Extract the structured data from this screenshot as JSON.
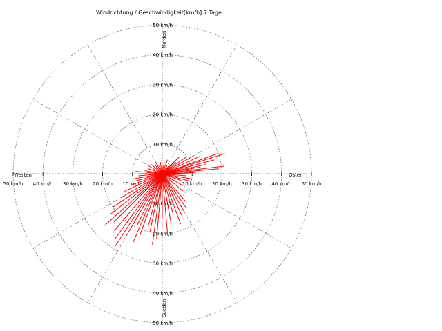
{
  "chart_data": {
    "type": "polar",
    "title": "Windrichtung / Geschwindigkeit[km/h] 7 Tage",
    "directions": {
      "north": "Norden",
      "south": "Sueden",
      "west": "Westen",
      "east": "Osten"
    },
    "r_max": 50,
    "ring_labels": [
      "10 km/h",
      "20 km/h",
      "30 km/h",
      "40 km/h",
      "50 km/h"
    ],
    "series_color": "#ff0000",
    "series": [
      {
        "values": [
          {
            "dir": 0,
            "speed": 3
          },
          {
            "dir": 10,
            "speed": 4
          },
          {
            "dir": 20,
            "speed": 5
          },
          {
            "dir": 30,
            "speed": 3
          },
          {
            "dir": 40,
            "speed": 4
          },
          {
            "dir": 45,
            "speed": 8
          },
          {
            "dir": 50,
            "speed": 6
          },
          {
            "dir": 55,
            "speed": 10
          },
          {
            "dir": 60,
            "speed": 12
          },
          {
            "dir": 65,
            "speed": 14
          },
          {
            "dir": 70,
            "speed": 20
          },
          {
            "dir": 72,
            "speed": 22
          },
          {
            "dir": 75,
            "speed": 18
          },
          {
            "dir": 78,
            "speed": 15
          },
          {
            "dir": 80,
            "speed": 13
          },
          {
            "dir": 83,
            "speed": 21
          },
          {
            "dir": 85,
            "speed": 19
          },
          {
            "dir": 88,
            "speed": 11
          },
          {
            "dir": 90,
            "speed": 9
          },
          {
            "dir": 95,
            "speed": 8
          },
          {
            "dir": 100,
            "speed": 10
          },
          {
            "dir": 105,
            "speed": 9
          },
          {
            "dir": 110,
            "speed": 7
          },
          {
            "dir": 120,
            "speed": 8
          },
          {
            "dir": 130,
            "speed": 9
          },
          {
            "dir": 140,
            "speed": 12
          },
          {
            "dir": 145,
            "speed": 14
          },
          {
            "dir": 150,
            "speed": 15
          },
          {
            "dir": 155,
            "speed": 16
          },
          {
            "dir": 160,
            "speed": 18
          },
          {
            "dir": 165,
            "speed": 14
          },
          {
            "dir": 170,
            "speed": 17
          },
          {
            "dir": 175,
            "speed": 20
          },
          {
            "dir": 180,
            "speed": 15
          },
          {
            "dir": 185,
            "speed": 22
          },
          {
            "dir": 188,
            "speed": 24
          },
          {
            "dir": 192,
            "speed": 20
          },
          {
            "dir": 195,
            "speed": 18
          },
          {
            "dir": 200,
            "speed": 22
          },
          {
            "dir": 203,
            "speed": 25
          },
          {
            "dir": 206,
            "speed": 19
          },
          {
            "dir": 210,
            "speed": 24
          },
          {
            "dir": 213,
            "speed": 29
          },
          {
            "dir": 216,
            "speed": 27
          },
          {
            "dir": 220,
            "speed": 25
          },
          {
            "dir": 225,
            "speed": 23
          },
          {
            "dir": 228,
            "speed": 26
          },
          {
            "dir": 232,
            "speed": 22
          },
          {
            "dir": 236,
            "speed": 20
          },
          {
            "dir": 240,
            "speed": 16
          },
          {
            "dir": 245,
            "speed": 14
          },
          {
            "dir": 250,
            "speed": 11
          },
          {
            "dir": 255,
            "speed": 9
          },
          {
            "dir": 260,
            "speed": 10
          },
          {
            "dir": 265,
            "speed": 8
          },
          {
            "dir": 270,
            "speed": 8
          },
          {
            "dir": 275,
            "speed": 9
          },
          {
            "dir": 280,
            "speed": 6
          },
          {
            "dir": 290,
            "speed": 5
          },
          {
            "dir": 300,
            "speed": 6
          },
          {
            "dir": 310,
            "speed": 5
          },
          {
            "dir": 320,
            "speed": 4
          },
          {
            "dir": 330,
            "speed": 5
          },
          {
            "dir": 340,
            "speed": 3
          },
          {
            "dir": 350,
            "speed": 4
          }
        ]
      }
    ]
  }
}
